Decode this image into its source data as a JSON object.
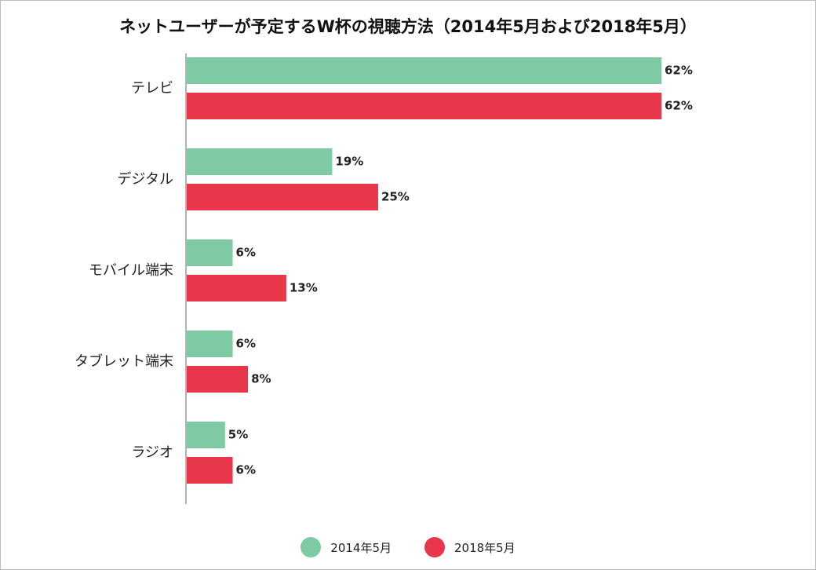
{
  "chart_data": {
    "type": "bar",
    "orientation": "horizontal",
    "title": "ネットユーザーが予定するW杯の視聴方法（2014年5月および2018年5月）",
    "categories": [
      "テレビ",
      "デジタル",
      "モバイル端末",
      "タブレット端末",
      "ラジオ"
    ],
    "series": [
      {
        "name": "2014年5月",
        "color": "#7ecba3",
        "values": [
          62,
          19,
          6,
          6,
          5
        ],
        "labels": [
          "62%",
          "19%",
          "6%",
          "6%",
          "5%"
        ]
      },
      {
        "name": "2018年5月",
        "color": "#e8364b",
        "values": [
          62,
          25,
          13,
          8,
          6
        ],
        "labels": [
          "62%",
          "25%",
          "13%",
          "8%",
          "6%"
        ]
      }
    ],
    "unit": "%",
    "xlim": [
      0,
      62
    ],
    "grid": false,
    "legend_position": "bottom"
  }
}
